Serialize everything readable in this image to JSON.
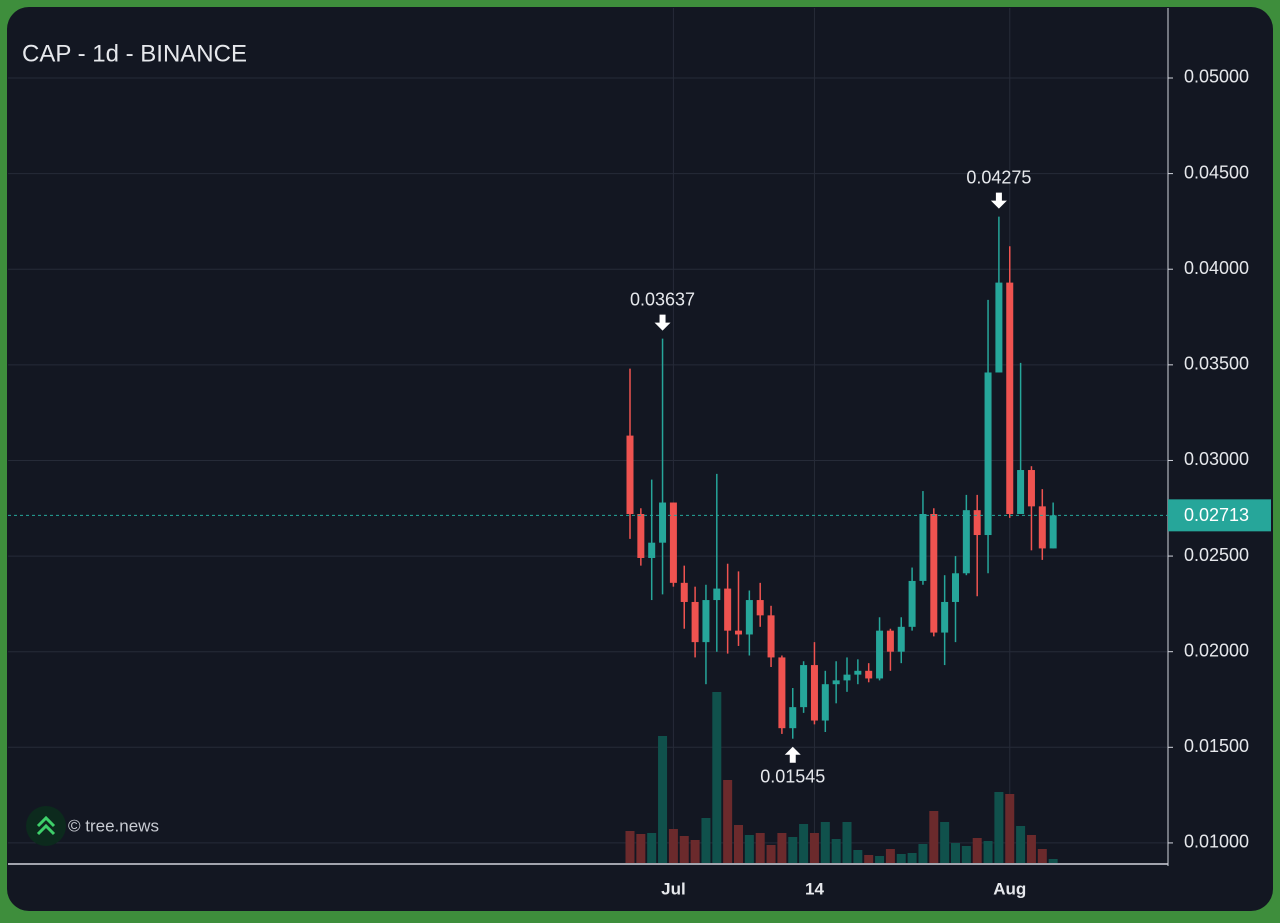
{
  "chart_data": {
    "type": "candlestick",
    "title": "CAP - 1d - BINANCE",
    "watermark": "© tree.news",
    "categories": [
      null,
      null,
      null,
      null,
      "Jul",
      null,
      null,
      null,
      null,
      null,
      null,
      null,
      null,
      null,
      null,
      null,
      null,
      "14",
      null,
      null,
      null,
      null,
      null,
      null,
      null,
      null,
      null,
      null,
      null,
      null,
      null,
      null,
      null,
      null,
      null,
      "Aug",
      null,
      null,
      null,
      null
    ],
    "open": [
      0.0313,
      0.0272,
      0.0249,
      0.0257,
      0.0278,
      0.0236,
      0.0226,
      0.0205,
      0.0227,
      0.0233,
      0.0211,
      0.0209,
      0.0227,
      0.0219,
      0.0197,
      0.016,
      0.0171,
      0.0193,
      0.0164,
      0.0183,
      0.0185,
      0.0188,
      0.019,
      0.0186,
      0.0211,
      0.02,
      0.0213,
      0.0237,
      0.0272,
      0.021,
      0.0226,
      0.0241,
      0.0274,
      0.0261,
      0.0346,
      0.0393,
      0.0272,
      0.0295,
      0.0276,
      0.0254
    ],
    "high": [
      0.0348,
      0.0275,
      0.029,
      0.03637,
      0.0278,
      0.0245,
      0.0234,
      0.0235,
      0.0293,
      0.0246,
      0.0242,
      0.0232,
      0.0236,
      0.0224,
      0.0198,
      0.0181,
      0.0195,
      0.0205,
      0.019,
      0.0195,
      0.0197,
      0.0196,
      0.0194,
      0.0218,
      0.0212,
      0.0218,
      0.0244,
      0.0284,
      0.0275,
      0.024,
      0.025,
      0.0282,
      0.0282,
      0.0384,
      0.04275,
      0.0412,
      0.0351,
      0.0297,
      0.0285,
      0.0278
    ],
    "low": [
      0.0259,
      0.0245,
      0.0227,
      0.023,
      0.0234,
      0.0212,
      0.0197,
      0.0183,
      0.02,
      0.0199,
      0.0203,
      0.0198,
      0.0213,
      0.0192,
      0.0157,
      0.01545,
      0.0168,
      0.0162,
      0.0158,
      0.0173,
      0.0179,
      0.0183,
      0.0184,
      0.0185,
      0.019,
      0.0194,
      0.0211,
      0.0235,
      0.0208,
      0.0193,
      0.0205,
      0.024,
      0.0229,
      0.0241,
      0.0346,
      0.027,
      0.0273,
      0.0253,
      0.0248,
      0.0254
    ],
    "close": [
      0.0272,
      0.0249,
      0.0257,
      0.0278,
      0.0236,
      0.0226,
      0.0205,
      0.0227,
      0.0233,
      0.0211,
      0.0209,
      0.0227,
      0.0219,
      0.0197,
      0.016,
      0.0171,
      0.0193,
      0.0164,
      0.0183,
      0.0185,
      0.0188,
      0.019,
      0.0186,
      0.0211,
      0.02,
      0.0213,
      0.0237,
      0.0272,
      0.021,
      0.0226,
      0.0241,
      0.0274,
      0.0261,
      0.0346,
      0.0393,
      0.0272,
      0.0295,
      0.0276,
      0.0254,
      0.02713
    ],
    "volume": [
      32,
      29,
      30,
      127,
      34,
      27,
      23,
      45,
      171,
      83,
      38,
      28,
      30,
      18,
      30,
      26,
      39,
      30,
      41,
      24,
      41,
      13,
      8,
      7,
      14,
      9,
      10,
      19,
      52,
      41,
      20,
      17,
      25,
      22,
      71,
      69,
      37,
      28,
      14,
      4
    ],
    "up_color": "#26a69a",
    "down_color": "#ef5350",
    "up_volume_color": "#10514c",
    "down_volume_color": "#6b2a2c",
    "last_price": 0.02713,
    "annotations": [
      0.03637,
      0.01545,
      0.04275
    ],
    "ylim": [
      0.00895,
      0.05366
    ],
    "yticks": [
      {
        "value": 0.01,
        "label": "0.01000"
      },
      {
        "value": 0.015,
        "label": "0.01500"
      },
      {
        "value": 0.02,
        "label": "0.02000"
      },
      {
        "value": 0.025,
        "label": "0.02500"
      },
      {
        "value": 0.03,
        "label": "0.03000"
      },
      {
        "value": 0.035,
        "label": "0.03500"
      },
      {
        "value": 0.04,
        "label": "0.04000"
      },
      {
        "value": 0.045,
        "label": "0.04500"
      },
      {
        "value": 0.05,
        "label": "0.05000"
      }
    ],
    "grid": true
  }
}
